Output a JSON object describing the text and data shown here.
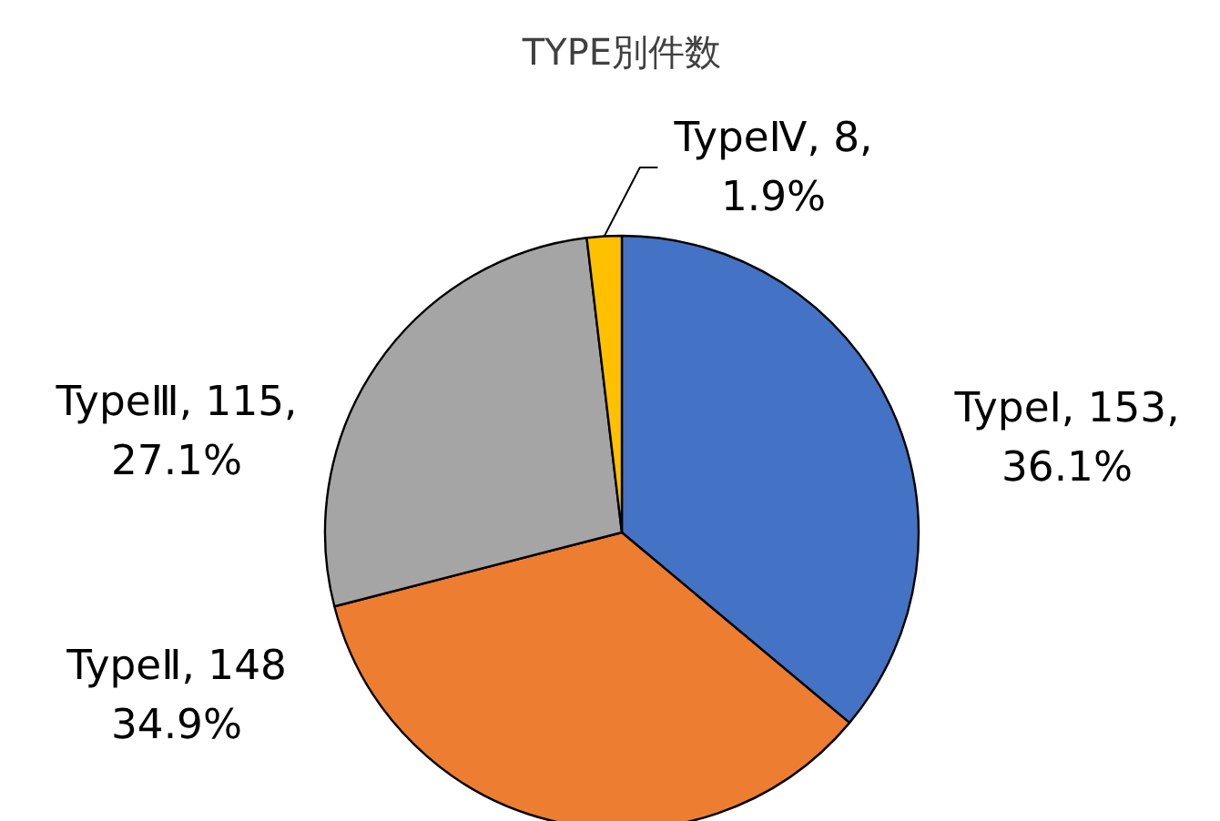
{
  "chart_data": {
    "type": "pie",
    "title": "TYPE別件数",
    "categories": [
      "TypeⅠ",
      "TypeⅡ",
      "TypeⅢ",
      "TypeⅣ"
    ],
    "values": [
      153,
      148,
      115,
      8
    ],
    "colors": [
      "#4472c4",
      "#ed7d31",
      "#a5a5a5",
      "#ffc000"
    ],
    "value_labels": [
      ", 153,\n36.1%",
      ", 148\n34.9%",
      ", 115,\n27.1%",
      ", 8,\n1.9%"
    ]
  }
}
